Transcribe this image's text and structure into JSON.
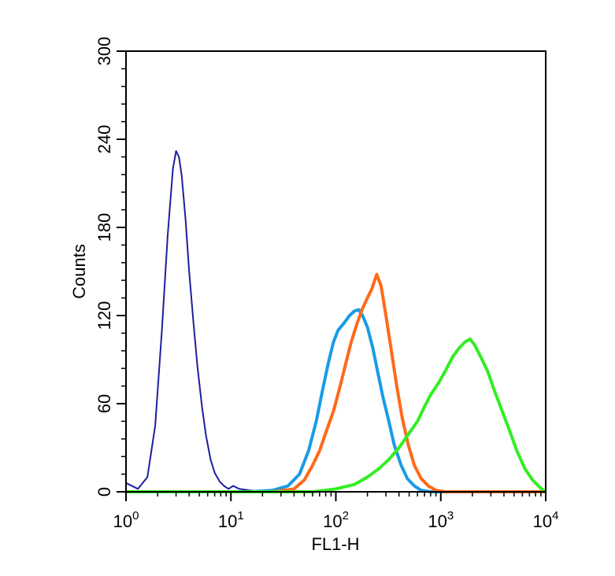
{
  "chart_data": {
    "type": "line",
    "title": "",
    "xlabel": "FL1-H",
    "ylabel": "Counts",
    "xscale": "log",
    "xlim": [
      1,
      10000
    ],
    "ylim": [
      0,
      300
    ],
    "xticks": [
      {
        "value": 1,
        "base": "10",
        "exp": "0"
      },
      {
        "value": 10,
        "base": "10",
        "exp": "1"
      },
      {
        "value": 100,
        "base": "10",
        "exp": "2"
      },
      {
        "value": 1000,
        "base": "10",
        "exp": "3"
      },
      {
        "value": 10000,
        "base": "10",
        "exp": "4"
      }
    ],
    "yticks": [
      "0",
      "60",
      "120",
      "180",
      "240",
      "300"
    ],
    "grid": false,
    "legend": "none",
    "series": [
      {
        "color": "#1f1f9e",
        "style": "thin",
        "x": [
          1.0,
          1.3,
          1.6,
          1.9,
          2.2,
          2.5,
          2.8,
          3.0,
          3.2,
          3.4,
          3.7,
          4.0,
          4.4,
          4.8,
          5.3,
          5.8,
          6.4,
          7.0,
          7.8,
          8.6,
          9.5,
          10.5,
          12,
          15,
          20,
          30
        ],
        "y": [
          6,
          2,
          10,
          45,
          110,
          175,
          220,
          232,
          228,
          215,
          185,
          150,
          115,
          85,
          58,
          38,
          22,
          13,
          7,
          4,
          2,
          4,
          2,
          1,
          0,
          0
        ]
      },
      {
        "color": "#1a9be6",
        "style": "thick",
        "x": [
          15,
          25,
          35,
          45,
          55,
          65,
          75,
          85,
          95,
          105,
          120,
          135,
          150,
          165,
          180,
          200,
          225,
          250,
          280,
          320,
          360,
          420,
          480,
          560,
          650,
          800,
          1000,
          10000
        ],
        "y": [
          0,
          1,
          4,
          12,
          28,
          48,
          70,
          88,
          102,
          110,
          115,
          120,
          123,
          124,
          120,
          112,
          98,
          82,
          65,
          48,
          32,
          18,
          9,
          4,
          1,
          0,
          0,
          0
        ]
      },
      {
        "color": "#ff6a1a",
        "style": "thick",
        "x": [
          25,
          40,
          50,
          60,
          70,
          80,
          95,
          110,
          125,
          140,
          160,
          180,
          200,
          220,
          245,
          270,
          300,
          340,
          380,
          430,
          490,
          560,
          650,
          760,
          900,
          1100,
          10000
        ],
        "y": [
          0,
          2,
          8,
          18,
          28,
          40,
          55,
          72,
          88,
          102,
          115,
          125,
          132,
          138,
          148,
          140,
          120,
          95,
          72,
          50,
          32,
          18,
          9,
          4,
          1,
          0,
          0
        ]
      },
      {
        "color": "#33ee22",
        "style": "thick",
        "x": [
          1,
          60,
          100,
          150,
          200,
          260,
          320,
          400,
          500,
          600,
          700,
          800,
          950,
          1100,
          1300,
          1500,
          1700,
          1900,
          2100,
          2400,
          2800,
          3200,
          3800,
          4500,
          5300,
          6300,
          7500,
          8800,
          10000
        ],
        "y": [
          0,
          0,
          2,
          5,
          10,
          16,
          22,
          30,
          40,
          48,
          58,
          66,
          74,
          82,
          92,
          98,
          102,
          104,
          100,
          92,
          82,
          70,
          56,
          42,
          28,
          16,
          8,
          3,
          0
        ]
      }
    ]
  }
}
